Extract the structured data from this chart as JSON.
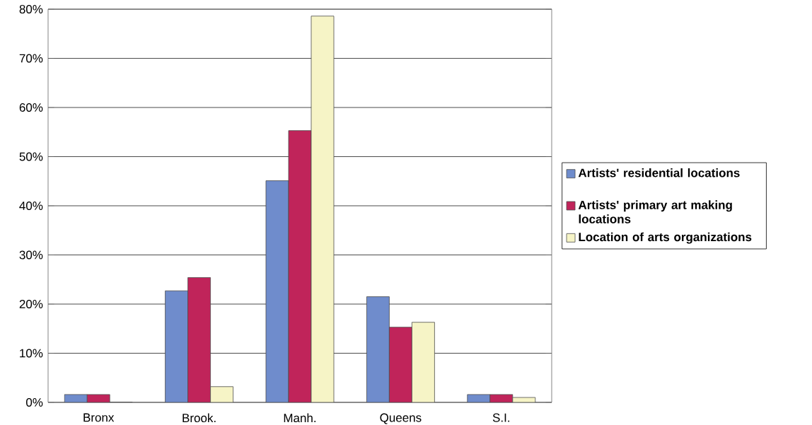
{
  "chart_data": {
    "type": "bar",
    "categories": [
      "Bronx",
      "Brook.",
      "Manh.",
      "Queens",
      "S.I."
    ],
    "series": [
      {
        "name": "Artists' residential locations",
        "color": "#6f8ccc",
        "values": [
          1.6,
          22.7,
          45.1,
          21.5,
          1.6
        ]
      },
      {
        "name": "Artists' primary art making locations",
        "color": "#c0245a",
        "values": [
          1.6,
          25.4,
          55.3,
          15.3,
          1.6
        ]
      },
      {
        "name": "Location of arts organizations",
        "color": "#f6f4c6",
        "values": [
          0,
          3.2,
          78.6,
          16.3,
          1.0
        ]
      }
    ],
    "ylim": [
      0,
      80
    ],
    "yticks": [
      {
        "value": 0,
        "label": "0%"
      },
      {
        "value": 10,
        "label": "10%"
      },
      {
        "value": 20,
        "label": "20%"
      },
      {
        "value": 30,
        "label": "30%"
      },
      {
        "value": 40,
        "label": "40%"
      },
      {
        "value": 50,
        "label": "50%"
      },
      {
        "value": 60,
        "label": "60%"
      },
      {
        "value": 70,
        "label": "70%"
      },
      {
        "value": 80,
        "label": "80%"
      }
    ],
    "grid": "y",
    "legend": "right"
  }
}
